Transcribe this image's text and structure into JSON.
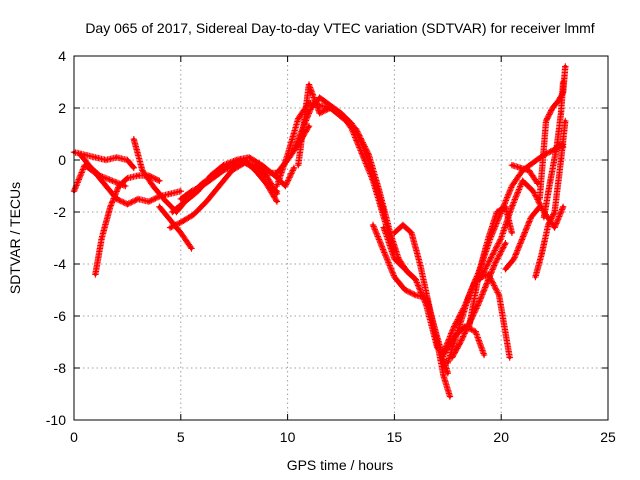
{
  "chart_data": {
    "type": "scatter",
    "title": "Day 065 of 2017, Sidereal Day-to-day VTEC variation (SDTVAR) for receiver lmmf",
    "xlabel": "GPS time / hours",
    "ylabel": "SDTVAR / TECUs",
    "xlim": [
      0,
      25
    ],
    "ylim": [
      -10,
      4
    ],
    "xticks": [
      "0",
      "5",
      "10",
      "15",
      "20",
      "25"
    ],
    "yticks": [
      "4",
      "2",
      "0",
      "-2",
      "-4",
      "-6",
      "-8",
      "-10"
    ],
    "grid": true,
    "marker": "plus",
    "color": "#ff0000",
    "series": [
      {
        "x": [
          0.0,
          0.5,
          1.0,
          1.5,
          2.0,
          2.5,
          3.0,
          3.5,
          4.0,
          4.5,
          5.0
        ],
        "y": [
          -1.2,
          -0.2,
          -0.5,
          -1.0,
          -1.5,
          -1.7,
          -1.5,
          -1.6,
          -1.4,
          -1.3,
          -1.2
        ]
      },
      {
        "x": [
          0.0,
          0.5,
          1.0,
          1.5,
          2.0,
          2.5,
          2.8
        ],
        "y": [
          0.3,
          0.2,
          0.1,
          0.0,
          0.1,
          0.0,
          -0.3
        ]
      },
      {
        "x": [
          0.3,
          0.8,
          1.2,
          1.8,
          2.4
        ],
        "y": [
          0.2,
          -0.3,
          -0.6,
          -0.8,
          -1.0
        ]
      },
      {
        "x": [
          1.0,
          1.3,
          1.7,
          2.1,
          2.5,
          3.0,
          3.5,
          4.0
        ],
        "y": [
          -4.4,
          -3.0,
          -1.8,
          -1.0,
          -0.7,
          -0.6,
          -0.6,
          -0.8
        ]
      },
      {
        "x": [
          2.8,
          3.2,
          3.7,
          4.2,
          4.8,
          5.4,
          6.0,
          6.6,
          7.2,
          7.8,
          8.4,
          9.0,
          9.5
        ],
        "y": [
          0.8,
          -0.4,
          -1.0,
          -1.5,
          -2.0,
          -1.4,
          -0.9,
          -0.6,
          -0.2,
          0.0,
          -0.3,
          -0.9,
          -1.6
        ]
      },
      {
        "x": [
          4.0,
          4.5,
          5.0,
          5.5
        ],
        "y": [
          -1.8,
          -2.3,
          -2.8,
          -3.4
        ]
      },
      {
        "x": [
          4.5,
          5.0,
          5.6,
          6.2,
          6.8,
          7.4,
          8.0,
          8.5,
          9.0,
          9.5
        ],
        "y": [
          -2.6,
          -2.4,
          -2.1,
          -1.6,
          -1.0,
          -0.4,
          -0.1,
          -0.2,
          -0.6,
          -1.3
        ]
      },
      {
        "x": [
          4.6,
          5.2,
          5.8,
          6.4,
          7.0,
          7.6,
          8.2,
          8.8,
          9.4,
          9.9,
          10.3
        ],
        "y": [
          -2.0,
          -1.6,
          -1.2,
          -0.6,
          -0.2,
          0.0,
          0.1,
          -0.2,
          -0.6,
          -1.0,
          -0.3
        ]
      },
      {
        "x": [
          5.0,
          5.5,
          6.0,
          6.5,
          7.0,
          7.5,
          8.0,
          8.5,
          9.0,
          9.5,
          10.0,
          10.5,
          11.0
        ],
        "y": [
          -1.5,
          -1.2,
          -1.0,
          -0.7,
          -0.4,
          -0.2,
          -0.1,
          -0.2,
          -0.5,
          -0.5,
          0.0,
          0.6,
          1.3
        ]
      },
      {
        "x": [
          8.0,
          8.6,
          9.1,
          9.5
        ],
        "y": [
          0.0,
          -0.5,
          -1.0,
          -1.2
        ]
      },
      {
        "x": [
          9.5,
          10.0,
          10.5,
          11.0,
          11.5,
          12.0,
          12.5,
          13.0,
          13.5,
          14.0,
          14.5,
          15.0
        ],
        "y": [
          -1.0,
          0.2,
          1.6,
          2.2,
          2.1,
          2.0,
          1.8,
          1.2,
          0.2,
          -0.8,
          -2.2,
          -3.5
        ]
      },
      {
        "x": [
          10.3,
          10.7,
          11.1,
          11.5,
          12.0,
          12.5,
          13.0,
          13.5,
          14.0,
          14.5
        ],
        "y": [
          0.4,
          1.2,
          2.0,
          2.4,
          2.1,
          1.8,
          1.4,
          0.6,
          -0.6,
          -2.0
        ]
      },
      {
        "x": [
          10.5,
          11.0,
          11.5,
          12.0,
          12.6,
          13.2,
          13.8,
          14.3,
          14.8,
          15.2,
          15.6,
          16.0
        ],
        "y": [
          -0.2,
          2.9,
          1.8,
          2.0,
          1.6,
          1.2,
          0.2,
          -1.2,
          -2.8,
          -3.8,
          -4.3,
          -4.6
        ]
      },
      {
        "x": [
          14.0,
          14.5,
          15.0,
          15.5,
          16.0,
          16.5,
          17.0,
          17.5
        ],
        "y": [
          -2.5,
          -3.5,
          -4.5,
          -5.0,
          -5.2,
          -5.3,
          -6.8,
          -8.2
        ]
      },
      {
        "x": [
          15.0,
          15.4,
          15.8,
          16.2,
          16.6,
          17.0,
          17.3,
          17.6
        ],
        "y": [
          -2.8,
          -2.5,
          -2.8,
          -4.0,
          -5.5,
          -7.0,
          -8.3,
          -9.1
        ]
      },
      {
        "x": [
          14.5,
          15.0,
          15.5,
          16.0,
          16.5,
          17.0,
          17.3
        ],
        "y": [
          -2.6,
          -3.8,
          -4.2,
          -4.6,
          -5.6,
          -7.2,
          -7.5
        ]
      },
      {
        "x": [
          17.3,
          17.8,
          18.3,
          18.8,
          19.2
        ],
        "y": [
          -7.5,
          -6.8,
          -6.4,
          -6.6,
          -7.5
        ]
      },
      {
        "x": [
          17.3,
          17.8,
          18.3,
          18.8,
          19.4,
          19.9,
          20.4
        ],
        "y": [
          -7.4,
          -6.4,
          -5.6,
          -4.6,
          -4.4,
          -5.2,
          -7.6
        ]
      },
      {
        "x": [
          17.5,
          18.0,
          18.5,
          19.0,
          19.5,
          20.0,
          20.5,
          21.0,
          21.5,
          22.0,
          22.5,
          22.9
        ],
        "y": [
          -7.8,
          -6.5,
          -5.2,
          -4.2,
          -3.0,
          -2.0,
          -1.0,
          -0.4,
          -0.1,
          0.2,
          0.4,
          0.6
        ]
      },
      {
        "x": [
          17.7,
          18.1,
          18.5,
          18.9,
          19.3,
          19.7,
          20.2
        ],
        "y": [
          -7.6,
          -7.0,
          -6.3,
          -5.6,
          -4.8,
          -4.0,
          -3.2
        ]
      },
      {
        "x": [
          18.5,
          19.0,
          19.4,
          19.8,
          20.2,
          20.5
        ],
        "y": [
          -6.4,
          -4.2,
          -3.0,
          -2.0,
          -1.8,
          -2.8
        ]
      },
      {
        "x": [
          19.0,
          19.5,
          20.0,
          20.5,
          21.0,
          21.5,
          22.0,
          22.5,
          22.9
        ],
        "y": [
          -4.6,
          -3.8,
          -3.0,
          -1.8,
          -0.8,
          -1.2,
          -2.0,
          -2.6,
          -1.8
        ]
      },
      {
        "x": [
          20.2,
          20.6,
          21.0,
          21.4,
          21.8
        ],
        "y": [
          -4.2,
          -3.8,
          -3.0,
          -2.2,
          -1.8
        ]
      },
      {
        "x": [
          20.5,
          20.9,
          21.3,
          21.7
        ],
        "y": [
          -0.2,
          -0.3,
          -0.4,
          -0.9
        ]
      },
      {
        "x": [
          21.6,
          21.9,
          22.2,
          22.5,
          22.8,
          23.0
        ],
        "y": [
          -4.5,
          -3.6,
          -2.5,
          -2.0,
          0.0,
          1.5
        ]
      },
      {
        "x": [
          21.8,
          22.1,
          22.4,
          22.7,
          22.9,
          23.0
        ],
        "y": [
          -1.5,
          1.5,
          2.0,
          2.3,
          2.6,
          3.6
        ]
      },
      {
        "x": [
          22.0,
          22.3,
          22.6,
          22.8,
          22.9
        ],
        "y": [
          -2.2,
          -0.8,
          0.5,
          1.8,
          3.0
        ]
      },
      {
        "x": [
          22.5,
          22.7,
          22.9
        ],
        "y": [
          0.4,
          0.6,
          0.5
        ]
      }
    ]
  }
}
